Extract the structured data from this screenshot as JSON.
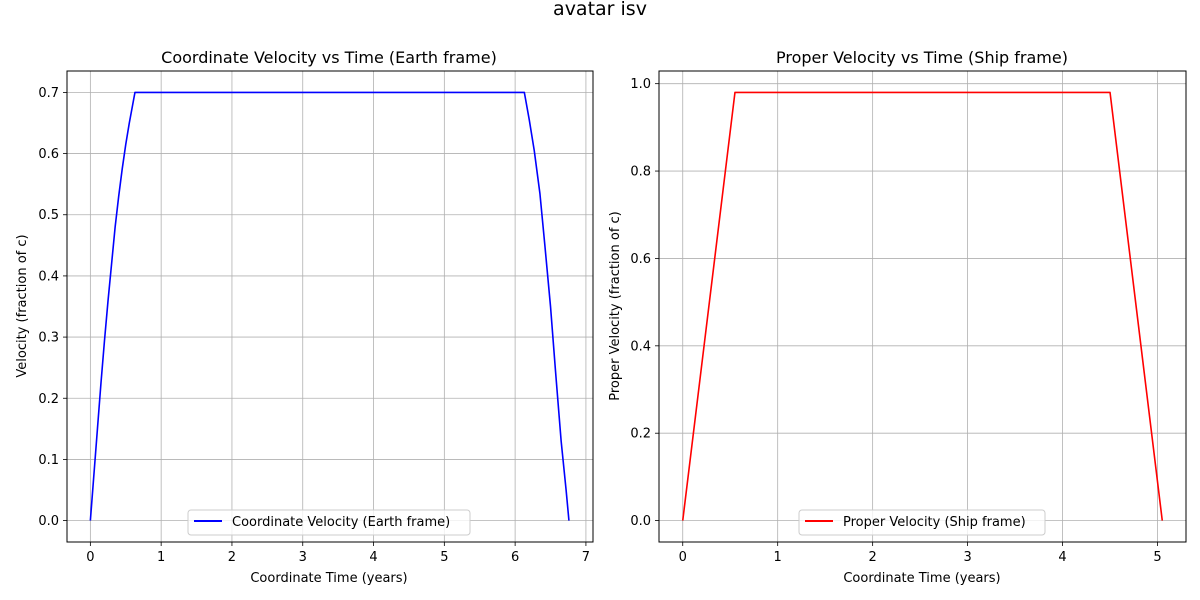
{
  "figure": {
    "suptitle": "avatar isv"
  },
  "chart_data": [
    {
      "type": "line",
      "title": "Coordinate Velocity vs Time (Earth frame)",
      "xlabel": "Coordinate Time (years)",
      "ylabel": "Velocity (fraction of c)",
      "xlim": [
        -0.33,
        7.1
      ],
      "ylim": [
        -0.035,
        0.735
      ],
      "xticks": [
        0,
        1,
        2,
        3,
        4,
        5,
        6,
        7
      ],
      "yticks": [
        0.0,
        0.1,
        0.2,
        0.3,
        0.4,
        0.5,
        0.6,
        0.7
      ],
      "ytick_decimals": 1,
      "grid": true,
      "legend_position": "bottom-center",
      "colors": {
        "line": "#0000ff"
      },
      "series": [
        {
          "name": "Coordinate Velocity (Earth frame)",
          "x": [
            0,
            0.05,
            0.1,
            0.15,
            0.2,
            0.25,
            0.3,
            0.35,
            0.4,
            0.45,
            0.5,
            0.55,
            0.63,
            6.13,
            6.2,
            6.27,
            6.35,
            6.42,
            6.5,
            6.57,
            6.65,
            6.72,
            6.76
          ],
          "y": [
            0,
            0.075,
            0.15,
            0.225,
            0.295,
            0.36,
            0.42,
            0.48,
            0.53,
            0.575,
            0.615,
            0.65,
            0.7,
            0.7,
            0.655,
            0.605,
            0.535,
            0.45,
            0.35,
            0.245,
            0.13,
            0.05,
            0
          ]
        }
      ]
    },
    {
      "type": "line",
      "title": "Proper Velocity vs Time (Ship frame)",
      "xlabel": "Coordinate Time (years)",
      "ylabel": "Proper Velocity (fraction of c)",
      "xlim": [
        -0.25,
        5.3
      ],
      "ylim": [
        -0.049,
        1.029
      ],
      "xticks": [
        0,
        1,
        2,
        3,
        4,
        5
      ],
      "yticks": [
        0.0,
        0.2,
        0.4,
        0.6,
        0.8,
        1.0
      ],
      "ytick_decimals": 1,
      "grid": true,
      "legend_position": "bottom-center",
      "colors": {
        "line": "#ff0000"
      },
      "series": [
        {
          "name": "Proper Velocity (Ship frame)",
          "x": [
            0,
            0.55,
            4.5,
            5.05
          ],
          "y": [
            0,
            0.98,
            0.98,
            0
          ]
        }
      ]
    }
  ]
}
